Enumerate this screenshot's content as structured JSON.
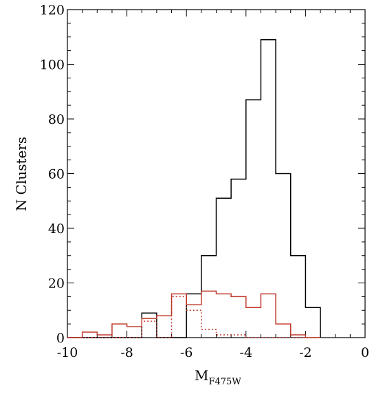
{
  "chart_data": {
    "type": "histogram-step",
    "xlabel": "M",
    "xlabel_subscript": "F475W",
    "ylabel": "N Clusters",
    "xlim": [
      -10,
      0
    ],
    "ylim": [
      0,
      120
    ],
    "x_ticks": [
      -10,
      -8,
      -6,
      -4,
      -2,
      0
    ],
    "y_ticks": [
      0,
      20,
      40,
      60,
      80,
      100,
      120
    ],
    "bin_edges": [
      -10.0,
      -9.5,
      -9.0,
      -8.5,
      -8.0,
      -7.5,
      -7.0,
      -6.5,
      -6.0,
      -5.5,
      -5.0,
      -4.5,
      -4.0,
      -3.5,
      -3.0,
      -2.5,
      -2.0,
      -1.5
    ],
    "grid": false,
    "series": [
      {
        "color": "#000000",
        "style": "solid",
        "values": [
          0,
          0,
          0,
          0,
          0,
          9,
          0,
          0,
          16,
          30,
          51,
          58,
          87,
          109,
          60,
          30,
          11
        ]
      },
      {
        "color": "#c0392b",
        "style": "solid",
        "values": [
          0,
          2,
          1,
          5,
          4,
          7,
          8,
          16,
          12,
          17,
          16,
          15,
          11,
          16,
          5,
          1,
          0
        ]
      },
      {
        "color": "#c0392b",
        "style": "dotted",
        "values": [
          0,
          0,
          0,
          0,
          0,
          6,
          0,
          15,
          10,
          3,
          1,
          1,
          0,
          0,
          0,
          0,
          0
        ]
      }
    ]
  }
}
